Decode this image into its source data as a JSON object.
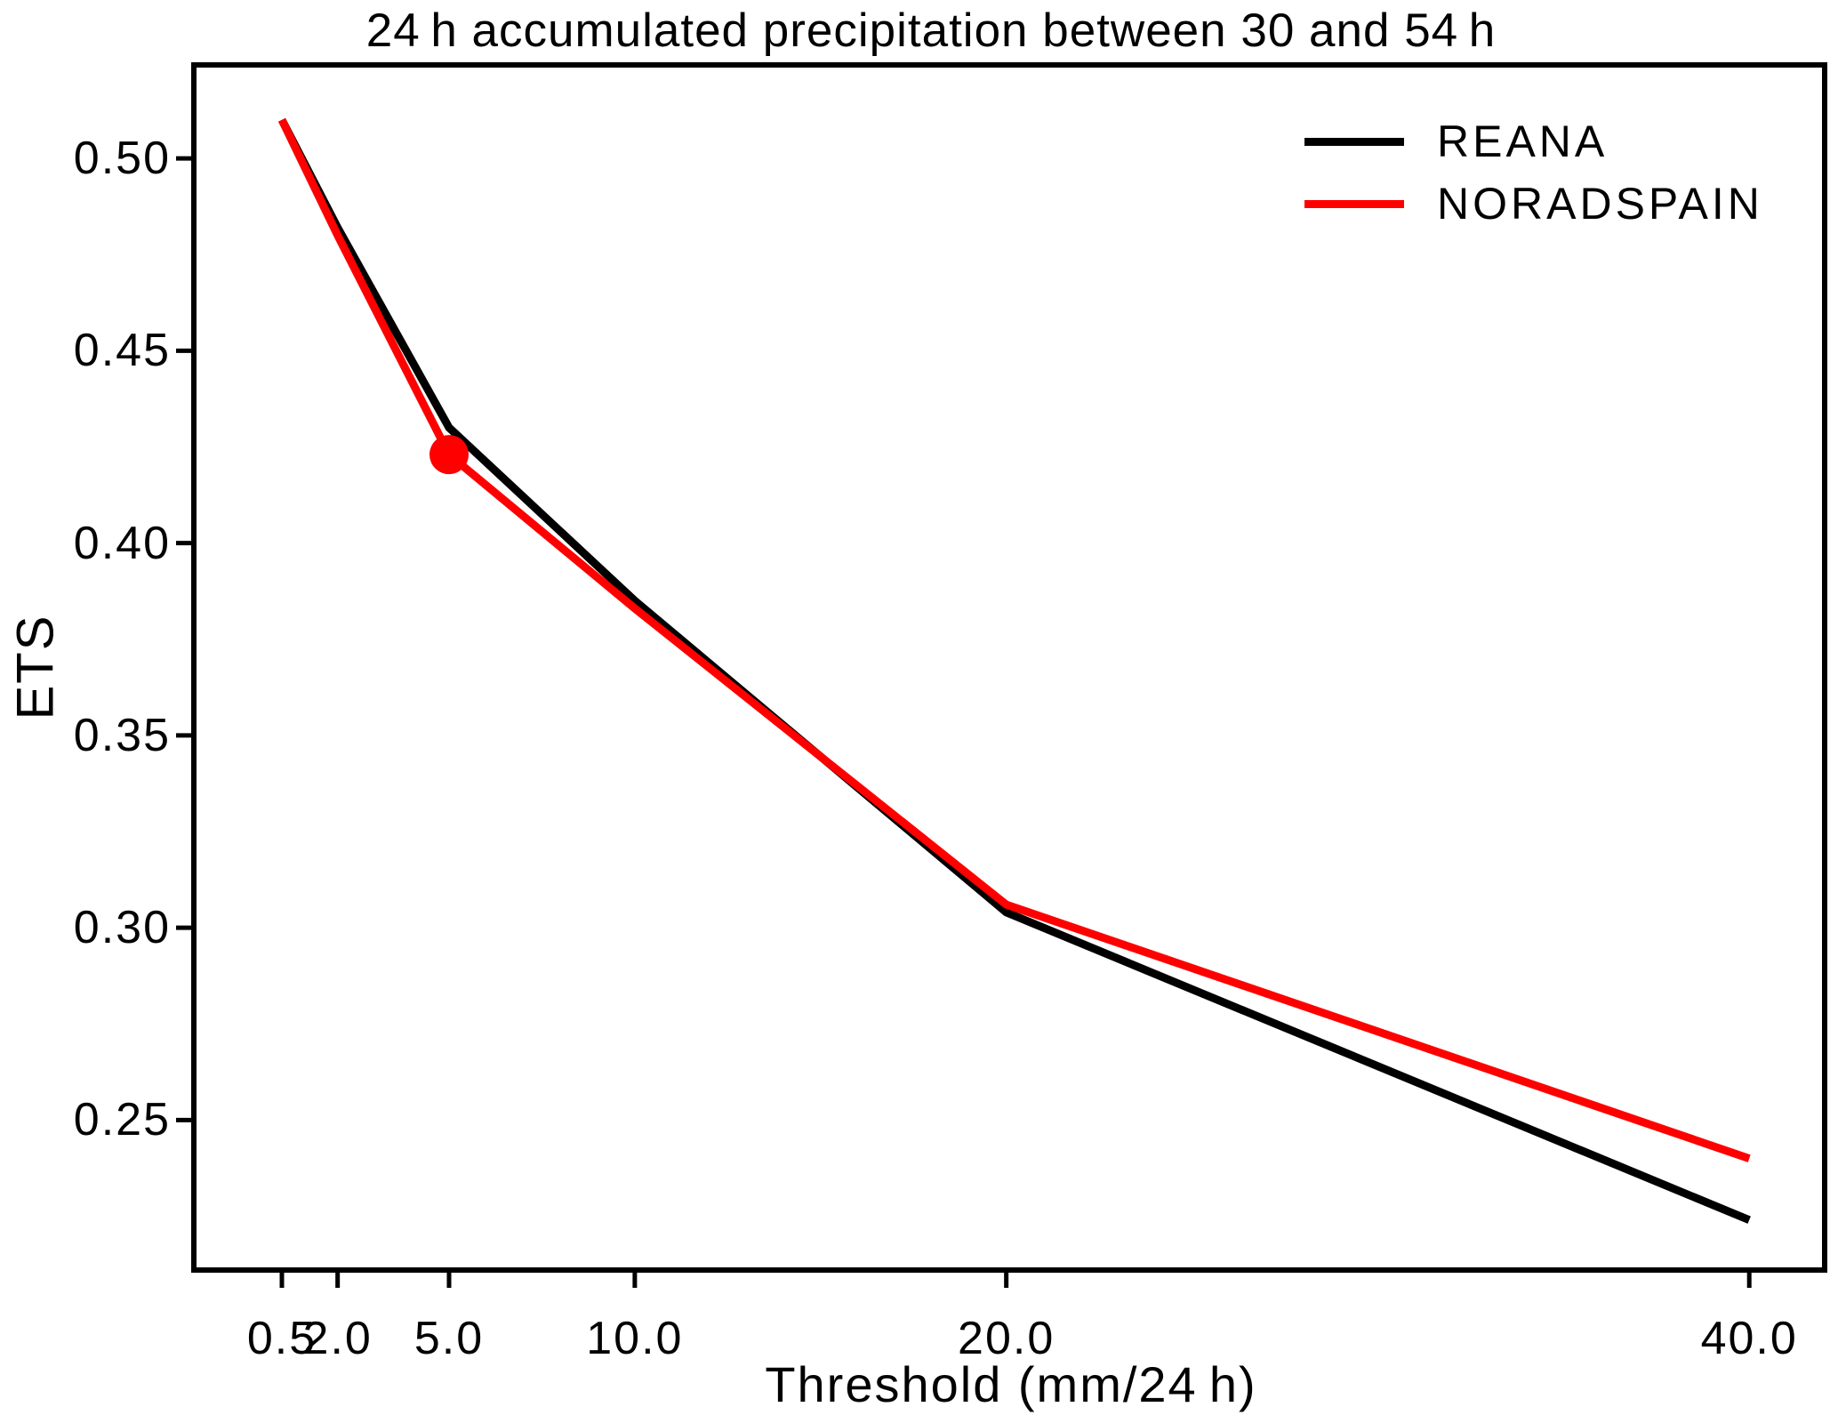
{
  "chart_data": {
    "type": "line",
    "title": "24 h accumulated precipitation between 30 and 54 h",
    "xlabel": "Threshold (mm/24 h)",
    "ylabel": "ETS",
    "x": [
      0.5,
      2.0,
      5.0,
      10.0,
      20.0,
      40.0
    ],
    "xtick_labels": [
      "0.5",
      "2.0",
      "5.0",
      "10.0",
      "20.0",
      "40.0"
    ],
    "ytick_values": [
      0.25,
      0.3,
      0.35,
      0.4,
      0.45,
      0.5
    ],
    "ytick_labels": [
      "0.25",
      "0.30",
      "0.35",
      "0.40",
      "0.45",
      "0.50"
    ],
    "xlim": [
      -1.87,
      42.03
    ],
    "ylim": [
      0.211,
      0.5243
    ],
    "grid": false,
    "legend_position": "upper right",
    "frame_color": "#000000",
    "series": [
      {
        "name": "REANA",
        "color": "#000000",
        "values": [
          0.51,
          0.482,
          0.43,
          0.385,
          0.304,
          0.224
        ]
      },
      {
        "name": "NORADSPAIN",
        "color": "#ff0000",
        "values": [
          0.51,
          0.48,
          0.423,
          0.383,
          0.306,
          0.24
        ],
        "marker": {
          "x": 5.0,
          "value": 0.423,
          "shape": "circle",
          "radius": 22
        }
      }
    ]
  }
}
